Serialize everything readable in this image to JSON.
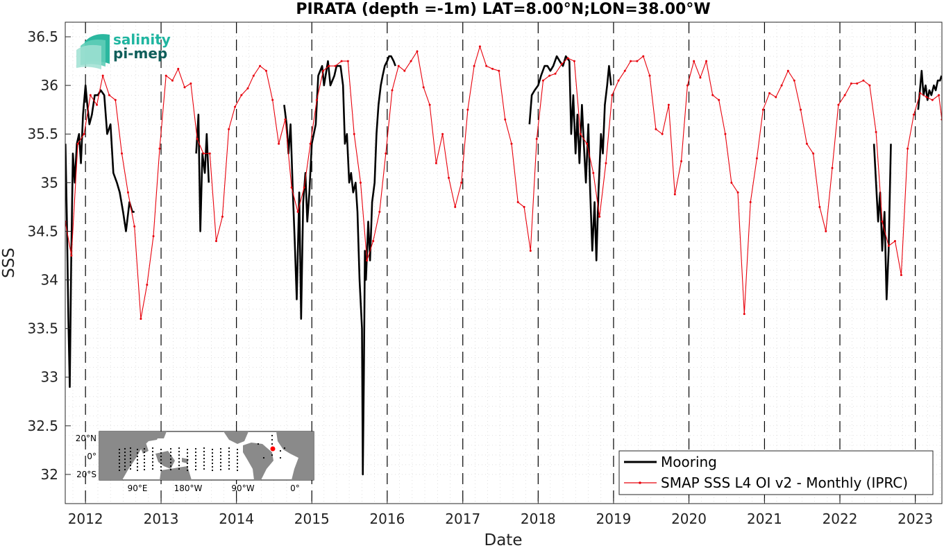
{
  "logo": {
    "line1": "salinity",
    "line2": "pi-mep",
    "color1": "#1fb5a0",
    "color2": "#0f5e5a"
  },
  "chart_data": {
    "type": "line",
    "title": "PIRATA (depth =-1m) LAT=8.00°N;LON=38.00°W",
    "xlabel": "Date",
    "ylabel": "SSS",
    "xlim": [
      "2011-09-25",
      "2023-05-10"
    ],
    "ylim": [
      31.7,
      36.65
    ],
    "yticks": [
      32,
      32.5,
      33,
      33.5,
      34,
      34.5,
      35,
      35.5,
      36,
      36.5
    ],
    "ytick_labels": [
      "32",
      "32.5",
      "33",
      "33.5",
      "34",
      "34.5",
      "35",
      "35.5",
      "36",
      "36.5"
    ],
    "xticks": [
      "2012-01-01",
      "2013-01-01",
      "2014-01-01",
      "2015-01-01",
      "2016-01-01",
      "2017-01-01",
      "2018-01-01",
      "2019-01-01",
      "2020-01-01",
      "2021-01-01",
      "2022-01-01",
      "2023-01-01"
    ],
    "xtick_labels": [
      "2012",
      "2013",
      "2014",
      "2015",
      "2016",
      "2017",
      "2018",
      "2019",
      "2020",
      "2021",
      "2022",
      "2023"
    ],
    "year_lines": "dashed vertical at each Jan 1",
    "grid": "dotted minor",
    "legend": {
      "placement": "bottom-right",
      "entries": [
        "Mooring",
        "SMAP SSS L4 OI v2 - Monthly (IPRC)"
      ]
    },
    "series": [
      {
        "name": "Mooring",
        "color": "#000000",
        "style": "thick noisy line",
        "segments": [
          {
            "x": [
              "2011-09-26",
              "2011-10-03",
              "2011-10-10",
              "2011-10-17",
              "2011-10-24",
              "2011-11-01",
              "2011-11-10",
              "2011-11-20",
              "2011-12-01",
              "2011-12-10",
              "2011-12-20",
              "2012-01-01",
              "2012-01-10",
              "2012-01-20",
              "2012-02-01",
              "2012-02-15",
              "2012-03-01",
              "2012-03-15",
              "2012-04-01",
              "2012-04-15",
              "2012-05-01",
              "2012-05-15",
              "2012-06-01",
              "2012-06-15",
              "2012-07-01",
              "2012-07-15",
              "2012-08-01",
              "2012-08-15",
              "2012-08-25"
            ],
            "y": [
              35.4,
              34.6,
              33.6,
              32.9,
              34.2,
              35.3,
              35.0,
              35.4,
              35.5,
              35.2,
              35.7,
              36.0,
              35.8,
              35.6,
              35.7,
              35.9,
              35.9,
              35.95,
              35.9,
              35.5,
              35.6,
              35.1,
              35.0,
              34.9,
              34.7,
              34.5,
              34.8,
              34.7,
              34.7
            ]
          },
          {
            "x": [
              "2013-06-20",
              "2013-07-01",
              "2013-07-10",
              "2013-07-20",
              "2013-08-01",
              "2013-08-10",
              "2013-08-20"
            ],
            "y": [
              35.3,
              35.7,
              34.5,
              35.3,
              35.1,
              35.5,
              35.0
            ]
          },
          {
            "x": [
              "2014-08-20",
              "2014-09-01",
              "2014-09-10",
              "2014-09-20",
              "2014-10-01",
              "2014-10-10",
              "2014-10-20",
              "2014-11-01",
              "2014-11-10",
              "2014-11-20",
              "2014-12-01",
              "2014-12-10",
              "2014-12-20",
              "2015-01-01",
              "2015-01-20",
              "2015-02-01",
              "2015-02-20",
              "2015-03-01",
              "2015-03-20",
              "2015-04-01",
              "2015-04-20",
              "2015-05-01",
              "2015-05-20",
              "2015-06-01",
              "2015-06-10",
              "2015-06-20",
              "2015-07-01",
              "2015-07-10",
              "2015-07-20",
              "2015-08-01",
              "2015-08-10",
              "2015-08-20",
              "2015-09-01",
              "2015-09-05",
              "2015-09-10",
              "2015-09-15",
              "2015-09-20",
              "2015-10-01",
              "2015-10-10",
              "2015-10-20",
              "2015-11-01",
              "2015-11-10",
              "2015-11-20",
              "2015-12-01",
              "2015-12-10",
              "2015-12-20",
              "2016-01-01",
              "2016-01-10",
              "2016-01-20",
              "2016-02-01",
              "2016-02-10"
            ],
            "y": [
              35.8,
              35.6,
              35.3,
              35.6,
              34.9,
              34.4,
              33.8,
              34.9,
              33.6,
              34.8,
              35.1,
              34.6,
              34.9,
              35.4,
              35.6,
              36.1,
              36.2,
              36.0,
              36.25,
              36.0,
              36.1,
              36.2,
              36.2,
              36.0,
              35.4,
              35.5,
              35.0,
              35.1,
              34.9,
              35.0,
              34.7,
              34.0,
              33.5,
              32.0,
              33.0,
              34.3,
              34.0,
              34.6,
              34.2,
              34.8,
              35.0,
              35.5,
              35.8,
              36.0,
              36.1,
              36.2,
              36.25,
              36.3,
              36.3,
              36.25,
              36.2
            ]
          },
          {
            "x": [
              "2017-11-20",
              "2017-12-01",
              "2017-12-15",
              "2018-01-01",
              "2018-01-15",
              "2018-02-01",
              "2018-02-15",
              "2018-03-01",
              "2018-03-15",
              "2018-04-01",
              "2018-04-15",
              "2018-05-01",
              "2018-05-15",
              "2018-06-01",
              "2018-06-10",
              "2018-06-20",
              "2018-07-01",
              "2018-07-10",
              "2018-07-20",
              "2018-08-01",
              "2018-08-10",
              "2018-08-20",
              "2018-09-01",
              "2018-09-10",
              "2018-09-20",
              "2018-10-01",
              "2018-10-10",
              "2018-10-20",
              "2018-11-01",
              "2018-11-10",
              "2018-11-20",
              "2018-12-01",
              "2018-12-10",
              "2018-12-20"
            ],
            "y": [
              35.6,
              35.9,
              35.95,
              36.0,
              36.1,
              36.2,
              36.2,
              36.15,
              36.2,
              36.3,
              36.25,
              36.2,
              36.3,
              36.25,
              35.5,
              35.9,
              35.3,
              35.7,
              35.2,
              35.8,
              35.4,
              35.0,
              35.6,
              34.9,
              34.3,
              34.8,
              34.2,
              34.9,
              35.5,
              35.3,
              35.8,
              36.0,
              36.2,
              36.0
            ]
          },
          {
            "x": [
              "2022-06-15",
              "2022-06-25",
              "2022-07-05",
              "2022-07-15",
              "2022-07-25",
              "2022-08-05",
              "2022-08-15",
              "2022-08-25",
              "2022-09-01",
              "2022-09-05"
            ],
            "y": [
              35.4,
              35.0,
              34.6,
              34.9,
              34.3,
              34.7,
              33.8,
              34.3,
              35.0,
              35.4
            ]
          },
          {
            "x": [
              "2023-01-15",
              "2023-02-01",
              "2023-02-10",
              "2023-02-20",
              "2023-03-01",
              "2023-03-10",
              "2023-03-20",
              "2023-04-01",
              "2023-04-10",
              "2023-04-20",
              "2023-05-01",
              "2023-05-08"
            ],
            "y": [
              35.75,
              36.15,
              35.9,
              36.0,
              35.85,
              35.95,
              35.9,
              36.0,
              35.95,
              36.05,
              36.05,
              36.1
            ]
          }
        ]
      },
      {
        "name": "SMAP SSS L4 OI v2 - Monthly (IPRC)",
        "color": "#e8000b",
        "style": "thin line with dot markers",
        "x": [
          "2011-09-25",
          "2011-10-25",
          "2011-11-25",
          "2011-12-25",
          "2012-01-25",
          "2012-02-25",
          "2012-03-25",
          "2012-04-25",
          "2012-05-25",
          "2012-06-25",
          "2012-07-25",
          "2012-08-25",
          "2012-09-25",
          "2012-10-25",
          "2012-11-25",
          "2012-12-25",
          "2013-01-25",
          "2013-02-25",
          "2013-03-25",
          "2013-04-25",
          "2013-05-25",
          "2013-06-25",
          "2013-07-25",
          "2013-08-25",
          "2013-09-25",
          "2013-10-25",
          "2013-11-25",
          "2013-12-25",
          "2014-01-25",
          "2014-02-25",
          "2014-03-25",
          "2014-04-25",
          "2014-05-25",
          "2014-06-25",
          "2014-07-25",
          "2014-08-25",
          "2014-09-25",
          "2014-10-25",
          "2014-11-25",
          "2014-12-25",
          "2015-01-25",
          "2015-02-25",
          "2015-03-25",
          "2015-04-25",
          "2015-05-25",
          "2015-06-25",
          "2015-07-25",
          "2015-08-25",
          "2015-09-25",
          "2015-10-25",
          "2015-11-25",
          "2015-12-25",
          "2016-01-25",
          "2016-02-25",
          "2016-03-25",
          "2016-04-25",
          "2016-05-25",
          "2016-06-25",
          "2016-07-25",
          "2016-08-25",
          "2016-09-25",
          "2016-10-25",
          "2016-11-25",
          "2016-12-25",
          "2017-01-25",
          "2017-02-25",
          "2017-03-25",
          "2017-04-25",
          "2017-05-25",
          "2017-06-25",
          "2017-07-25",
          "2017-08-25",
          "2017-09-25",
          "2017-10-25",
          "2017-11-25",
          "2017-12-25",
          "2018-01-25",
          "2018-02-25",
          "2018-03-25",
          "2018-04-25",
          "2018-05-25",
          "2018-06-25",
          "2018-07-25",
          "2018-08-25",
          "2018-09-25",
          "2018-10-25",
          "2018-11-25",
          "2018-12-25",
          "2019-01-25",
          "2019-02-25",
          "2019-03-25",
          "2019-04-25",
          "2019-05-25",
          "2019-06-25",
          "2019-07-25",
          "2019-08-25",
          "2019-09-25",
          "2019-10-25",
          "2019-11-25",
          "2019-12-25",
          "2020-01-25",
          "2020-02-25",
          "2020-03-25",
          "2020-04-25",
          "2020-05-25",
          "2020-06-25",
          "2020-07-25",
          "2020-08-25",
          "2020-09-25",
          "2020-10-25",
          "2020-11-25",
          "2020-12-25",
          "2021-01-25",
          "2021-02-25",
          "2021-03-25",
          "2021-04-25",
          "2021-05-25",
          "2021-06-25",
          "2021-07-25",
          "2021-08-25",
          "2021-09-25",
          "2021-10-25",
          "2021-11-25",
          "2021-12-25",
          "2022-01-25",
          "2022-02-25",
          "2022-03-25",
          "2022-04-25",
          "2022-05-25",
          "2022-06-25",
          "2022-07-25",
          "2022-08-25",
          "2022-09-25",
          "2022-10-25",
          "2022-11-25",
          "2022-12-25",
          "2023-01-25",
          "2023-02-25",
          "2023-03-25",
          "2023-04-25",
          "2023-05-10"
        ],
        "y": [
          34.6,
          34.25,
          35.4,
          35.5,
          35.9,
          35.8,
          36.1,
          35.9,
          35.85,
          35.3,
          34.9,
          34.55,
          33.6,
          33.95,
          34.45,
          35.35,
          36.1,
          36.05,
          36.17,
          35.98,
          36.02,
          35.45,
          35.3,
          35.3,
          34.4,
          34.65,
          35.55,
          35.78,
          35.9,
          35.97,
          36.1,
          36.2,
          36.15,
          35.85,
          35.4,
          35.65,
          34.95,
          34.7,
          34.95,
          35.4,
          35.85,
          36.15,
          36.2,
          36.2,
          36.25,
          36.25,
          35.5,
          35.0,
          34.2,
          34.4,
          34.7,
          35.3,
          35.95,
          36.2,
          36.15,
          36.25,
          36.35,
          35.98,
          35.8,
          35.2,
          35.5,
          35.05,
          34.75,
          35.0,
          35.75,
          36.2,
          36.4,
          36.2,
          36.17,
          36.15,
          35.65,
          35.4,
          34.8,
          34.75,
          34.3,
          35.45,
          36.05,
          36.1,
          36.12,
          36.22,
          36.28,
          36.25,
          35.5,
          35.4,
          35.1,
          34.65,
          35.2,
          35.9,
          36.05,
          36.15,
          36.25,
          36.25,
          36.3,
          36.1,
          35.55,
          35.5,
          35.8,
          34.88,
          35.22,
          36.0,
          36.25,
          36.08,
          36.25,
          35.9,
          35.85,
          35.5,
          35.0,
          34.9,
          33.65,
          34.8,
          35.25,
          35.75,
          35.92,
          35.88,
          36.0,
          36.15,
          36.05,
          35.75,
          35.4,
          35.3,
          34.75,
          34.5,
          35.15,
          35.8,
          35.9,
          36.02,
          36.02,
          36.05,
          36.0,
          35.52,
          34.6,
          34.35,
          34.4,
          34.05,
          35.35,
          35.7,
          35.92,
          35.88,
          35.85,
          35.9,
          35.65
        ]
      }
    ],
    "inset_map": {
      "lat_ticks": [
        "20°N",
        "0°",
        "20°S"
      ],
      "lon_ticks": [
        "90°E",
        "180°W",
        "90°W",
        "0°"
      ],
      "land_color": "#8a8a8a",
      "marker_color": "#ff0000"
    }
  }
}
